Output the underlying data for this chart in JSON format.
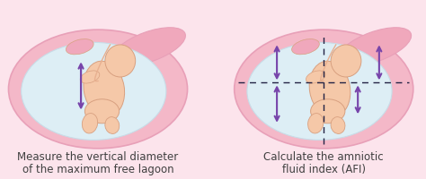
{
  "background_color": "#fce4ec",
  "uterus_outer_fill": "#f4b8c8",
  "uterus_outer_edge": "#e8a0b8",
  "uterus_top_fill": "#f0a8bc",
  "amniotic_fill": "#ddeef5",
  "amniotic_edge": "#c8dde8",
  "baby_skin": "#f5c8a8",
  "baby_skin_dark": "#e8b090",
  "baby_edge": "#d8a080",
  "arrow_color": "#7744aa",
  "dashed_color": "#222244",
  "text_color": "#404040",
  "left_caption_line1": "Measure the vertical diameter",
  "left_caption_line2": "of the maximum free lagoon",
  "right_caption_line1": "Calculate the amniotic",
  "right_caption_line2": "fluid index (AFI)",
  "font_size": 8.5,
  "fig_width": 4.74,
  "fig_height": 2.01,
  "dpi": 100
}
